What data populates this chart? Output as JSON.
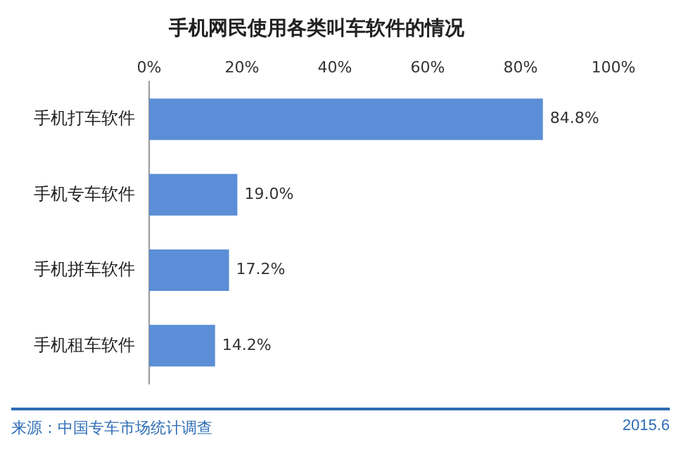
{
  "chart_data": {
    "type": "bar",
    "orientation": "horizontal",
    "title": "手机网民使用各类叫车软件的情况",
    "categories": [
      "手机打车软件",
      "手机专车软件",
      "手机拼车软件",
      "手机租车软件"
    ],
    "values": [
      84.8,
      19.0,
      17.2,
      14.2
    ],
    "value_labels": [
      "84.8%",
      "19.0%",
      "17.2%",
      "14.2%"
    ],
    "color": "#5b8ed6",
    "xlim": [
      0,
      100
    ],
    "xticks": [
      {
        "value": 0,
        "label": "0%"
      },
      {
        "value": 20,
        "label": "20%"
      },
      {
        "value": 40,
        "label": "40%"
      },
      {
        "value": 60,
        "label": "60%"
      },
      {
        "value": 80,
        "label": "80%"
      },
      {
        "value": 100,
        "label": "100%"
      }
    ],
    "grid": false,
    "legend": false,
    "annotations": [
      "来源：中国专车市场统计调查",
      "2015.6"
    ]
  }
}
